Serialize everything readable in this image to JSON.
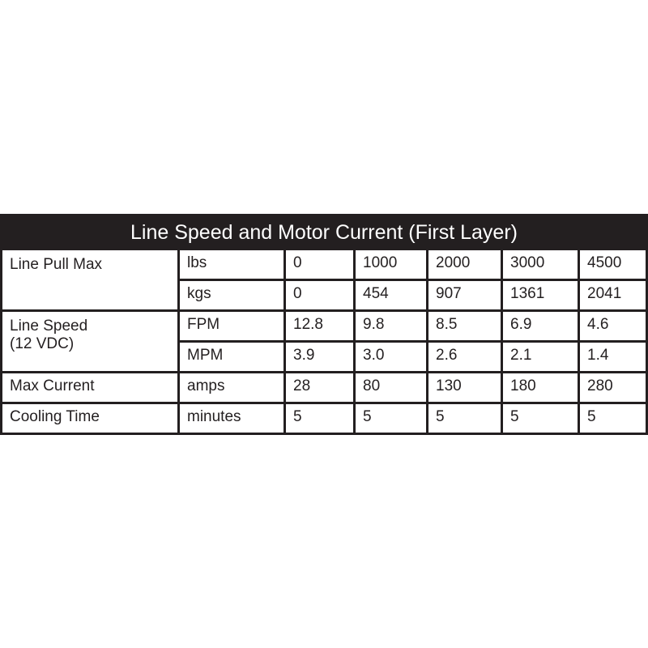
{
  "title": "Line Speed and Motor Current (First Layer)",
  "colors": {
    "border": "#231f20",
    "header_text": "#ffffff",
    "cell_bg": "#ffffff"
  },
  "rows": [
    {
      "label": "Line Pull Max",
      "units": [
        {
          "unit": "lbs",
          "values": [
            "0",
            "1000",
            "2000",
            "3000",
            "4500"
          ]
        },
        {
          "unit": "kgs",
          "values": [
            "0",
            "454",
            "907",
            "1361",
            "2041"
          ]
        }
      ]
    },
    {
      "label": "Line Speed\n(12 VDC)",
      "units": [
        {
          "unit": "FPM",
          "values": [
            "12.8",
            "9.8",
            "8.5",
            "6.9",
            "4.6"
          ]
        },
        {
          "unit": "MPM",
          "values": [
            "3.9",
            "3.0",
            "2.6",
            "2.1",
            "1.4"
          ]
        }
      ]
    },
    {
      "label": "Max Current",
      "units": [
        {
          "unit": "amps",
          "values": [
            "28",
            "80",
            "130",
            "180",
            "280"
          ]
        }
      ]
    },
    {
      "label": "Cooling Time",
      "units": [
        {
          "unit": "minutes",
          "values": [
            "5",
            "5",
            "5",
            "5",
            "5"
          ]
        }
      ]
    }
  ]
}
